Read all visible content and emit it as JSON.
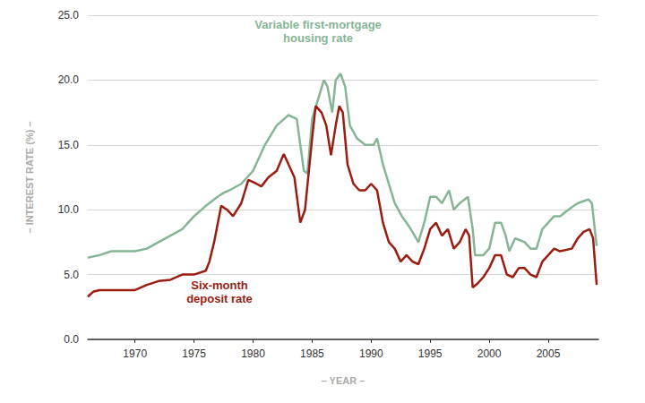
{
  "chart_data": {
    "type": "line",
    "xlabel": "– YEAR –",
    "ylabel": "– INTEREST RATE (%) –",
    "xlim": [
      1966,
      2009.25
    ],
    "xticks": [
      1970,
      1975,
      1980,
      1985,
      1990,
      1995,
      2000,
      2005
    ],
    "ylim": [
      0,
      25
    ],
    "yticks": [
      {
        "value": 0,
        "label": "0.0"
      },
      {
        "value": 5,
        "label": "5.0"
      },
      {
        "value": 10,
        "label": "10.0"
      },
      {
        "value": 15,
        "label": "15.0"
      },
      {
        "value": 20,
        "label": "20.0"
      },
      {
        "value": 25,
        "label": "25.0"
      }
    ],
    "grid": true,
    "series": [
      {
        "name": "Variable first-mortgage\nhousing rate",
        "color": "#86b596",
        "x": [
          1966,
          1967,
          1968,
          1969,
          1970,
          1971,
          1972,
          1973,
          1974,
          1975,
          1976,
          1977,
          1977.5,
          1978,
          1979,
          1980,
          1981,
          1982,
          1983,
          1983.7,
          1984.3,
          1984.6,
          1985,
          1985.5,
          1986,
          1986.3,
          1986.7,
          1987,
          1987.4,
          1987.8,
          1988.2,
          1988.8,
          1989.5,
          1990.2,
          1990.5,
          1991,
          1991.5,
          1992,
          1992.6,
          1993,
          1993.5,
          1994,
          1994.5,
          1995,
          1995.5,
          1996,
          1996.6,
          1997,
          1997.5,
          1998.2,
          1998.6,
          1998.8,
          1999.5,
          2000,
          2000.5,
          2001,
          2001.4,
          2001.7,
          2002.2,
          2003,
          2003.5,
          2004,
          2004.5,
          2005,
          2005.5,
          2006,
          2007,
          2007.5,
          2008.4,
          2008.7,
          2009.1
        ],
        "values": [
          6.3,
          6.5,
          6.8,
          6.8,
          6.8,
          7.0,
          7.5,
          8.0,
          8.5,
          9.5,
          10.3,
          11.0,
          11.3,
          11.5,
          12.0,
          13.0,
          15.0,
          16.5,
          17.3,
          17.0,
          13.0,
          12.8,
          17.0,
          18.5,
          20.0,
          19.5,
          17.5,
          20.0,
          20.5,
          19.5,
          16.5,
          15.5,
          15.0,
          15.0,
          15.5,
          13.5,
          12.0,
          10.5,
          9.5,
          9.0,
          8.3,
          7.5,
          9.0,
          11.0,
          11.0,
          10.5,
          11.5,
          10.0,
          10.5,
          11.0,
          8.5,
          6.5,
          6.5,
          7.0,
          9.0,
          9.0,
          8.0,
          6.8,
          7.8,
          7.5,
          7.0,
          7.0,
          8.5,
          9.0,
          9.5,
          9.5,
          10.2,
          10.5,
          10.8,
          10.5,
          7.2
        ]
      },
      {
        "name": "Six-month\ndeposit rate",
        "color": "#9b1c10",
        "x": [
          1966,
          1966.5,
          1967,
          1970,
          1971,
          1972,
          1973,
          1974,
          1975,
          1976,
          1976.3,
          1976.7,
          1977.3,
          1977.8,
          1978.3,
          1979,
          1979.6,
          1980.3,
          1980.7,
          1981.3,
          1982,
          1982.6,
          1983,
          1983.5,
          1984,
          1984.4,
          1985,
          1985.3,
          1985.8,
          1986.2,
          1986.6,
          1987,
          1987.3,
          1987.6,
          1988,
          1988.5,
          1989,
          1989.5,
          1990,
          1990.5,
          1991,
          1991.5,
          1992,
          1992.5,
          1993,
          1993.5,
          1994,
          1994.5,
          1995,
          1995.5,
          1996,
          1996.5,
          1997,
          1997.5,
          1998,
          1998.3,
          1998.6,
          1999,
          1999.5,
          2000,
          2000.5,
          2001,
          2001.5,
          2002,
          2002.5,
          2003,
          2003.5,
          2004,
          2004.5,
          2005,
          2005.5,
          2006,
          2007,
          2007.5,
          2008,
          2008.5,
          2008.8,
          2009.1
        ],
        "values": [
          3.3,
          3.7,
          3.8,
          3.8,
          4.2,
          4.5,
          4.6,
          5.0,
          5.0,
          5.3,
          6.0,
          7.5,
          10.3,
          10.0,
          9.5,
          10.5,
          12.3,
          12.0,
          11.8,
          12.5,
          13.0,
          14.3,
          13.5,
          12.5,
          9.0,
          10.0,
          15.5,
          18.0,
          17.5,
          16.5,
          14.2,
          16.5,
          18.0,
          17.5,
          13.5,
          12.0,
          11.5,
          11.5,
          12.0,
          11.5,
          9.0,
          7.5,
          7.0,
          6.0,
          6.5,
          6.0,
          5.8,
          7.0,
          8.5,
          9.0,
          8.0,
          8.5,
          7.0,
          7.5,
          8.5,
          8.0,
          4.0,
          4.3,
          4.8,
          5.5,
          6.5,
          6.5,
          5.0,
          4.8,
          5.5,
          5.5,
          5.0,
          4.8,
          6.0,
          6.5,
          7.0,
          6.8,
          7.0,
          7.8,
          8.3,
          8.5,
          7.8,
          4.2
        ]
      }
    ]
  }
}
